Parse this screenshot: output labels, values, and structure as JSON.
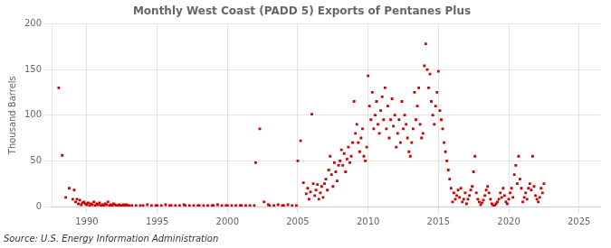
{
  "chart_data": {
    "type": "scatter",
    "title": "Monthly West Coast (PADD 5) Exports of Pentanes Plus",
    "ylabel": "Thousand Barrels",
    "annotations": [
      "Source: U.S. Energy Information Administration"
    ],
    "color": "#cc0000",
    "marker": "square",
    "grid": true,
    "xlim": [
      1987.5,
      2026.5
    ],
    "ylim": [
      0,
      200
    ],
    "xticks": [
      1990,
      1995,
      2000,
      2005,
      2010,
      2015,
      2020,
      2025
    ],
    "yticks": [
      0,
      50,
      100,
      150,
      200
    ],
    "x": [
      1988.0,
      1988.25,
      1988.5,
      1988.75,
      1989.0,
      1989.1,
      1989.2,
      1989.3,
      1989.4,
      1989.5,
      1989.6,
      1989.7,
      1989.8,
      1989.9,
      1990.0,
      1990.1,
      1990.2,
      1990.3,
      1990.4,
      1990.5,
      1990.6,
      1990.7,
      1990.8,
      1990.9,
      1991.0,
      1991.1,
      1991.2,
      1991.3,
      1991.4,
      1991.5,
      1991.6,
      1991.7,
      1991.8,
      1991.9,
      1992.0,
      1992.1,
      1992.2,
      1992.3,
      1992.4,
      1992.5,
      1992.6,
      1992.7,
      1992.8,
      1992.9,
      1993.0,
      1993.2,
      1993.5,
      1993.8,
      1994.0,
      1994.3,
      1994.6,
      1994.9,
      1995.0,
      1995.3,
      1995.6,
      1995.9,
      1996.0,
      1996.3,
      1996.6,
      1996.9,
      1997.0,
      1997.3,
      1997.6,
      1997.9,
      1998.0,
      1998.3,
      1998.6,
      1998.9,
      1999.0,
      1999.3,
      1999.6,
      1999.9,
      2000.0,
      2000.3,
      2000.6,
      2000.9,
      2001.0,
      2001.3,
      2001.6,
      2001.9,
      2002.0,
      2002.3,
      2002.6,
      2002.9,
      2003.0,
      2003.3,
      2003.6,
      2003.9,
      2004.0,
      2004.3,
      2004.6,
      2004.9,
      2005.0,
      2005.2,
      2005.4,
      2005.6,
      2005.7,
      2005.8,
      2005.9,
      2006.0,
      2006.1,
      2006.2,
      2006.3,
      2006.4,
      2006.5,
      2006.6,
      2006.7,
      2006.8,
      2006.9,
      2007.0,
      2007.1,
      2007.2,
      2007.3,
      2007.4,
      2007.5,
      2007.6,
      2007.7,
      2007.8,
      2007.9,
      2008.0,
      2008.1,
      2008.2,
      2008.3,
      2008.4,
      2008.5,
      2008.6,
      2008.7,
      2008.8,
      2008.9,
      2009.0,
      2009.1,
      2009.2,
      2009.3,
      2009.4,
      2009.5,
      2009.6,
      2009.7,
      2009.8,
      2009.9,
      2010.0,
      2010.1,
      2010.2,
      2010.3,
      2010.4,
      2010.5,
      2010.6,
      2010.7,
      2010.8,
      2010.9,
      2011.0,
      2011.1,
      2011.2,
      2011.3,
      2011.4,
      2011.5,
      2011.6,
      2011.7,
      2011.8,
      2011.9,
      2012.0,
      2012.1,
      2012.2,
      2012.3,
      2012.4,
      2012.5,
      2012.6,
      2012.7,
      2012.8,
      2012.9,
      2013.0,
      2013.1,
      2013.2,
      2013.3,
      2013.4,
      2013.5,
      2013.6,
      2013.7,
      2013.8,
      2013.9,
      2014.0,
      2014.1,
      2014.2,
      2014.3,
      2014.4,
      2014.5,
      2014.6,
      2014.7,
      2014.8,
      2014.9,
      2015.0,
      2015.1,
      2015.2,
      2015.3,
      2015.4,
      2015.5,
      2015.6,
      2015.7,
      2015.8,
      2015.9,
      2016.0,
      2016.1,
      2016.2,
      2016.3,
      2016.4,
      2016.5,
      2016.6,
      2016.7,
      2016.8,
      2016.9,
      2017.0,
      2017.1,
      2017.2,
      2017.3,
      2017.4,
      2017.5,
      2017.6,
      2017.7,
      2017.8,
      2017.9,
      2018.0,
      2018.1,
      2018.2,
      2018.3,
      2018.4,
      2018.5,
      2018.6,
      2018.7,
      2018.8,
      2018.9,
      2019.0,
      2019.1,
      2019.2,
      2019.3,
      2019.4,
      2019.5,
      2019.6,
      2019.7,
      2019.8,
      2019.9,
      2020.0,
      2020.1,
      2020.2,
      2020.3,
      2020.4,
      2020.5,
      2020.6,
      2020.7,
      2020.8,
      2020.9,
      2021.0,
      2021.1,
      2021.2,
      2021.3,
      2021.4,
      2021.5,
      2021.6,
      2021.7,
      2021.8,
      2021.9,
      2022.0,
      2022.1,
      2022.2,
      2022.3,
      2022.4,
      2022.5
    ],
    "values": [
      130,
      56,
      10,
      20,
      8,
      18,
      5,
      8,
      3,
      7,
      2,
      4,
      5,
      3,
      2,
      4,
      1,
      3,
      2,
      5,
      1,
      3,
      2,
      4,
      1,
      2,
      1,
      3,
      2,
      5,
      1,
      2,
      1,
      3,
      2,
      1,
      1,
      2,
      1,
      1,
      2,
      1,
      2,
      1,
      1,
      1,
      1,
      1,
      1,
      2,
      1,
      1,
      1,
      1,
      2,
      1,
      1,
      1,
      1,
      2,
      1,
      1,
      1,
      1,
      1,
      1,
      1,
      1,
      1,
      2,
      1,
      1,
      1,
      1,
      1,
      1,
      1,
      1,
      1,
      1,
      48,
      85,
      5,
      2,
      1,
      1,
      2,
      1,
      1,
      2,
      1,
      1,
      50,
      72,
      26,
      14,
      20,
      8,
      16,
      101,
      25,
      12,
      18,
      24,
      8,
      15,
      22,
      10,
      25,
      30,
      18,
      40,
      55,
      35,
      22,
      48,
      38,
      28,
      45,
      50,
      62,
      45,
      58,
      38,
      52,
      65,
      48,
      55,
      70,
      115,
      80,
      90,
      70,
      60,
      75,
      85,
      55,
      50,
      65,
      143,
      110,
      95,
      125,
      85,
      100,
      115,
      90,
      80,
      105,
      120,
      95,
      130,
      85,
      110,
      75,
      95,
      118,
      88,
      100,
      65,
      80,
      95,
      70,
      115,
      85,
      100,
      90,
      75,
      60,
      55,
      70,
      85,
      125,
      95,
      110,
      130,
      90,
      75,
      80,
      154,
      178,
      150,
      130,
      145,
      115,
      100,
      90,
      110,
      125,
      148,
      105,
      95,
      85,
      70,
      60,
      50,
      40,
      30,
      20,
      5,
      15,
      8,
      12,
      18,
      10,
      20,
      5,
      8,
      15,
      3,
      8,
      12,
      18,
      22,
      38,
      55,
      15,
      8,
      5,
      2,
      4,
      7,
      12,
      18,
      22,
      15,
      8,
      3,
      1,
      1,
      3,
      5,
      8,
      15,
      10,
      20,
      12,
      5,
      3,
      8,
      15,
      20,
      10,
      35,
      45,
      25,
      55,
      30,
      20,
      5,
      10,
      15,
      8,
      20,
      25,
      18,
      55,
      22,
      12,
      8,
      5,
      10,
      20,
      15,
      25
    ]
  }
}
